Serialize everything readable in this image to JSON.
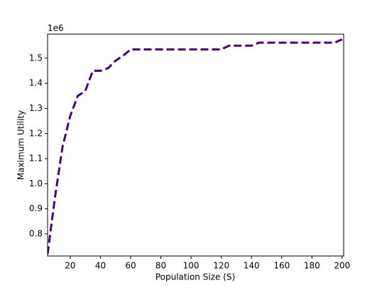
{
  "chart_data": {
    "type": "line",
    "x_label": "Population Size (S)",
    "y_label": "Maximum Utility",
    "y_offset_label": "1e6",
    "x": [
      5,
      10,
      15,
      20,
      25,
      30,
      35,
      40,
      45,
      50,
      55,
      60,
      65,
      70,
      75,
      80,
      85,
      90,
      95,
      100,
      105,
      110,
      115,
      120,
      125,
      130,
      135,
      140,
      145,
      150,
      155,
      160,
      165,
      170,
      175,
      180,
      185,
      190,
      195,
      200
    ],
    "series": [
      {
        "name": "Maximum Utility",
        "color": "#4b0082",
        "values": [
          720000,
          950000,
          1150000,
          1270000,
          1350000,
          1370000,
          1450000,
          1450000,
          1460000,
          1490000,
          1510000,
          1535000,
          1535000,
          1535000,
          1535000,
          1535000,
          1535000,
          1535000,
          1535000,
          1535000,
          1535000,
          1535000,
          1535000,
          1535000,
          1550000,
          1550000,
          1550000,
          1550000,
          1562000,
          1562000,
          1562000,
          1562000,
          1562000,
          1562000,
          1562000,
          1562000,
          1562000,
          1562000,
          1562000,
          1575000
        ]
      }
    ],
    "xlim": [
      5,
      201
    ],
    "ylim": [
      712000,
      1596000
    ],
    "xticks": [
      20,
      40,
      60,
      80,
      100,
      120,
      140,
      160,
      180,
      200
    ],
    "yticks": [
      {
        "value": 800000,
        "label": "0.8"
      },
      {
        "value": 900000,
        "label": "0.9"
      },
      {
        "value": 1000000,
        "label": "1.0"
      },
      {
        "value": 1100000,
        "label": "1.1"
      },
      {
        "value": 1200000,
        "label": "1.2"
      },
      {
        "value": 1300000,
        "label": "1.3"
      },
      {
        "value": 1400000,
        "label": "1.4"
      },
      {
        "value": 1500000,
        "label": "1.5"
      }
    ],
    "grid": false
  }
}
